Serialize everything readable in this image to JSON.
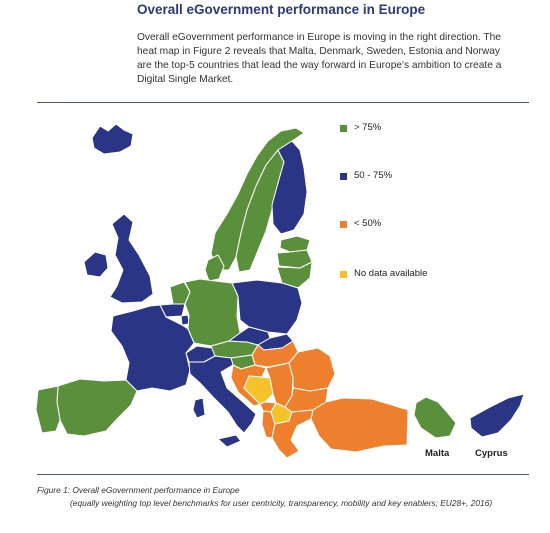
{
  "header": {
    "title": "Overall eGovernment performance in Europe",
    "intro": "Overall eGovernment performance in Europe is moving in the right direction. The heat map in Figure 2 reveals that Malta, Denmark, Sweden, Estonia and Norway are the top-5 countries that lead the way forward in Europe's ambition to create a Digital Single Market."
  },
  "colors": {
    "green": "#5a8f3c",
    "blue": "#2a3585",
    "orange": "#ee7f2d",
    "yellow": "#f4c22b",
    "border": "#ffffff"
  },
  "legend": [
    {
      "label": "> 75%",
      "color": "#5a8f3c"
    },
    {
      "label": "50 - 75%",
      "color": "#2a3585"
    },
    {
      "label": "< 50%",
      "color": "#ee7f2d"
    },
    {
      "label": "No data available",
      "color": "#f4c22b"
    }
  ],
  "insets": {
    "malta_label": "Malta",
    "cyprus_label": "Cyprus"
  },
  "caption": {
    "title": "Figure 1: Overall eGovernment performance in Europe",
    "note": "(equally weighting top level benchmarks for user centricity, transparency, mobility and key enablers; EU28+, 2016)"
  },
  "regions": [
    {
      "id": "iceland",
      "category": "50 - 75%"
    },
    {
      "id": "norway",
      "category": "> 75%"
    },
    {
      "id": "sweden",
      "category": "> 75%"
    },
    {
      "id": "finland",
      "category": "50 - 75%"
    },
    {
      "id": "estonia",
      "category": "> 75%"
    },
    {
      "id": "latvia",
      "category": "> 75%"
    },
    {
      "id": "lithuania",
      "category": "> 75%"
    },
    {
      "id": "denmark",
      "category": "> 75%"
    },
    {
      "id": "ireland",
      "category": "50 - 75%"
    },
    {
      "id": "united-kingdom",
      "category": "50 - 75%"
    },
    {
      "id": "netherlands",
      "category": "> 75%"
    },
    {
      "id": "belgium",
      "category": "50 - 75%"
    },
    {
      "id": "luxembourg",
      "category": "50 - 75%"
    },
    {
      "id": "germany",
      "category": "> 75%"
    },
    {
      "id": "poland",
      "category": "50 - 75%"
    },
    {
      "id": "france",
      "category": "50 - 75%"
    },
    {
      "id": "switzerland",
      "category": "50 - 75%"
    },
    {
      "id": "austria",
      "category": "> 75%"
    },
    {
      "id": "czech-republic",
      "category": "50 - 75%"
    },
    {
      "id": "slovakia",
      "category": "50 - 75%"
    },
    {
      "id": "hungary",
      "category": "< 50%"
    },
    {
      "id": "slovenia",
      "category": "> 75%"
    },
    {
      "id": "croatia",
      "category": "< 50%"
    },
    {
      "id": "bosnia",
      "category": "No data available"
    },
    {
      "id": "serbia",
      "category": "< 50%"
    },
    {
      "id": "montenegro",
      "category": "< 50%"
    },
    {
      "id": "albania",
      "category": "< 50%"
    },
    {
      "id": "macedonia",
      "category": "No data available"
    },
    {
      "id": "romania",
      "category": "< 50%"
    },
    {
      "id": "bulgaria",
      "category": "< 50%"
    },
    {
      "id": "greece",
      "category": "< 50%"
    },
    {
      "id": "turkey",
      "category": "< 50%"
    },
    {
      "id": "spain",
      "category": "> 75%"
    },
    {
      "id": "portugal",
      "category": "> 75%"
    },
    {
      "id": "italy",
      "category": "50 - 75%"
    },
    {
      "id": "malta",
      "category": "> 75%"
    },
    {
      "id": "cyprus",
      "category": "50 - 75%"
    }
  ]
}
